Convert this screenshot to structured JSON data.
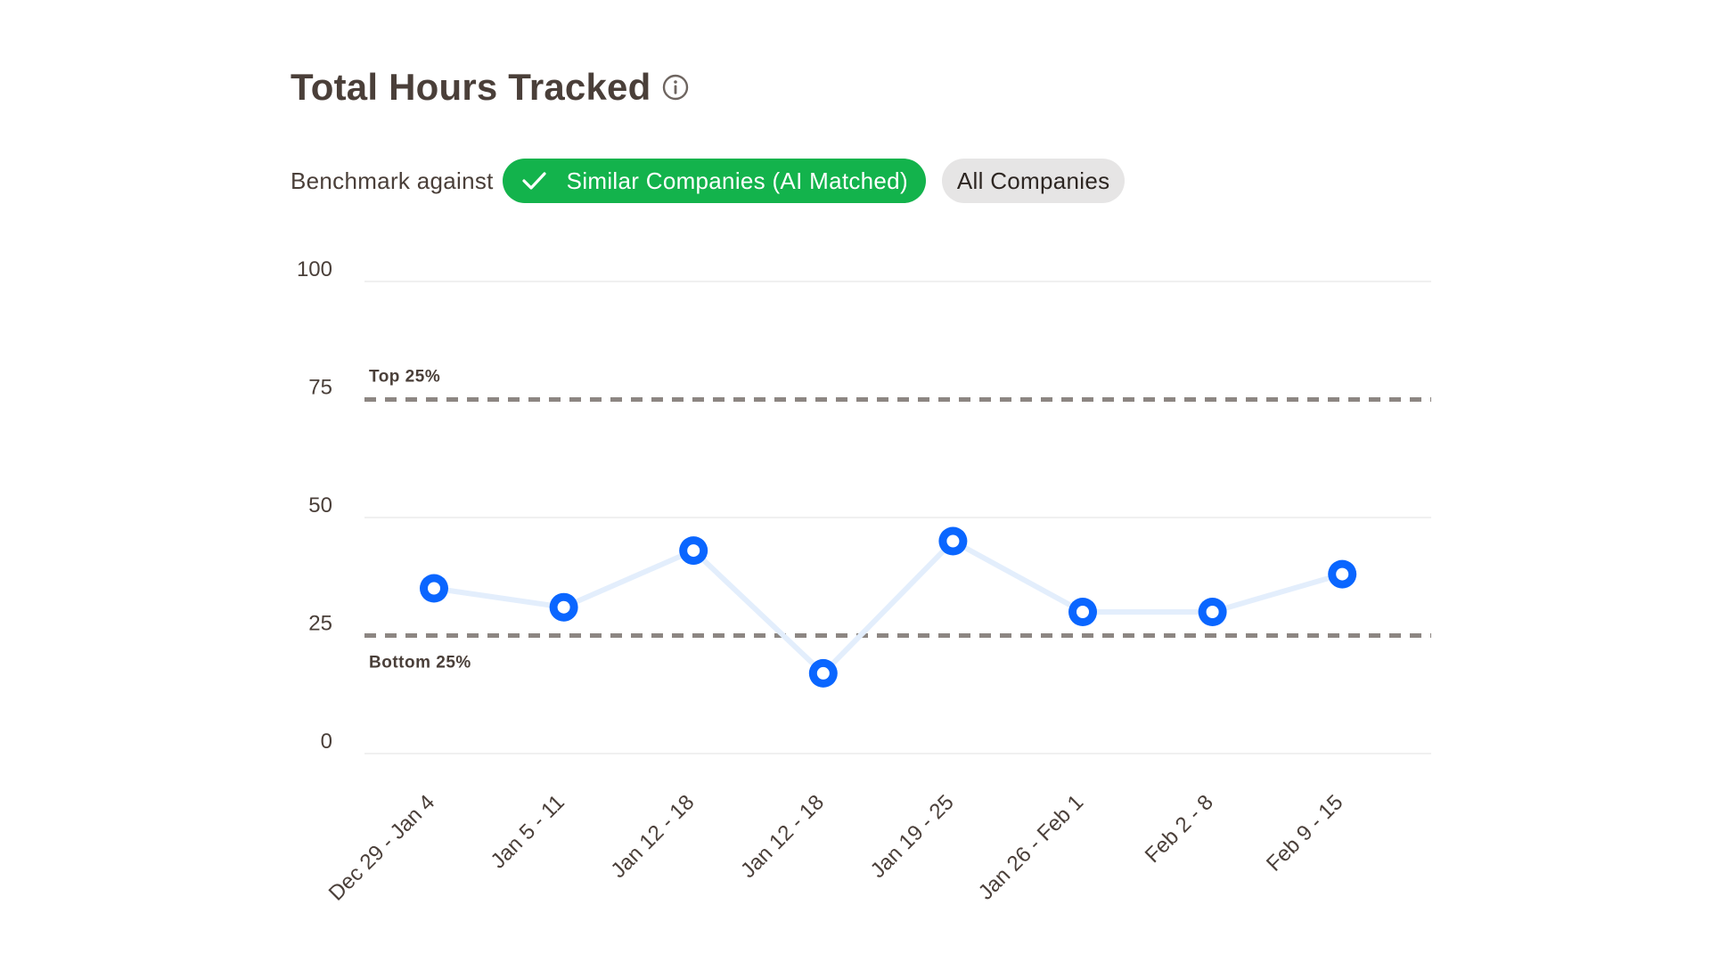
{
  "header": {
    "title": "Total Hours Tracked",
    "info_icon": "info-icon"
  },
  "benchmark": {
    "label": "Benchmark against",
    "options": [
      {
        "label": "Similar Companies (AI Matched)",
        "selected": true,
        "icon": "check-icon"
      },
      {
        "label": "All Companies",
        "selected": false
      }
    ]
  },
  "colors": {
    "accent_green": "#13b34c",
    "point_blue": "#0a66ff",
    "line_blue": "#e3eefc",
    "reference_gray": "#8c8682",
    "grid_gray": "#ececec",
    "text": "#4a3f39"
  },
  "chart_data": {
    "type": "line",
    "title": "Total Hours Tracked",
    "xlabel": "",
    "ylabel": "",
    "ylim": [
      0,
      100
    ],
    "yticks": [
      0,
      25,
      50,
      75,
      100
    ],
    "grid": true,
    "categories": [
      "Dec 29 - Jan 4",
      "Jan 5 - 11",
      "Jan 12 - 18",
      "Jan 12 - 18",
      "Jan 19 - 25",
      "Jan 26 - Feb 1",
      "Feb 2 - 8",
      "Feb 9 - 15"
    ],
    "series": [
      {
        "values": [
          35,
          31,
          43,
          17,
          45,
          30,
          30,
          38
        ]
      }
    ],
    "reference_lines": [
      {
        "label": "Top 25%",
        "value": 75,
        "label_position": "above"
      },
      {
        "label": "Bottom 25%",
        "value": 25,
        "label_position": "below"
      }
    ]
  }
}
